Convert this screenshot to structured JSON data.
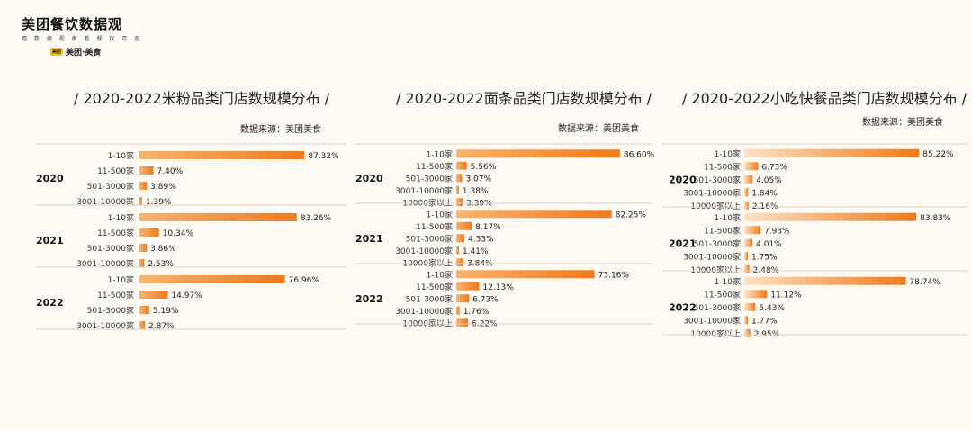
{
  "logo": {
    "title": "美团餐饮数据观",
    "subtitle": "用 数 据 视 角 看 餐 饮 百 态",
    "brand": "美团·美食",
    "badge": "美团"
  },
  "colors": {
    "bar_dark": "#f07a1c",
    "bar_light": "#f9b46e",
    "bar_pale": "#fce3c4",
    "background": "#fdf9f3"
  },
  "chart_data": [
    {
      "type": "bar",
      "orientation": "horizontal",
      "title": "/ 2020-2022米粉品类门店数规模分布 /",
      "source": "数据来源：美团美食",
      "unit": "%",
      "xlim": [
        0,
        100
      ],
      "groups": [
        {
          "year": "2020",
          "categories": [
            "1-10家",
            "11-500家",
            "501-3000家",
            "3001-10000家"
          ],
          "values": [
            87.32,
            7.4,
            3.89,
            1.39
          ],
          "labels": [
            "87.32%",
            "7.40%",
            "3.89%",
            "1.39%"
          ]
        },
        {
          "year": "2021",
          "categories": [
            "1-10家",
            "11-500家",
            "501-3000家",
            "3001-10000家"
          ],
          "values": [
            83.26,
            10.34,
            3.86,
            2.53
          ],
          "labels": [
            "83.26%",
            "10.34%",
            "3.86%",
            "2.53%"
          ]
        },
        {
          "year": "2022",
          "categories": [
            "1-10家",
            "11-500家",
            "501-3000家",
            "3001-10000家"
          ],
          "values": [
            76.96,
            14.97,
            5.19,
            2.87
          ],
          "labels": [
            "76.96%",
            "14.97%",
            "5.19%",
            "2.87%"
          ]
        }
      ]
    },
    {
      "type": "bar",
      "orientation": "horizontal",
      "title": "/ 2020-2022面条品类门店数规模分布 /",
      "source": "数据来源：美团美食",
      "unit": "%",
      "xlim": [
        0,
        100
      ],
      "groups": [
        {
          "year": "2020",
          "categories": [
            "1-10家",
            "11-500家",
            "501-3000家",
            "3001-10000家",
            "10000家以上"
          ],
          "values": [
            86.6,
            5.56,
            3.07,
            1.38,
            3.39
          ],
          "labels": [
            "86.60%",
            "5.56%",
            "3.07%",
            "1.38%",
            "3.39%"
          ]
        },
        {
          "year": "2021",
          "categories": [
            "1-10家",
            "11-500家",
            "501-3000家",
            "3001-10000家",
            "10000家以上"
          ],
          "values": [
            82.25,
            8.17,
            4.33,
            1.41,
            3.84
          ],
          "labels": [
            "82.25%",
            "8.17%",
            "4.33%",
            "1.41%",
            "3.84%"
          ]
        },
        {
          "year": "2022",
          "categories": [
            "1-10家",
            "11-500家",
            "501-3000家",
            "3001-10000家",
            "10000家以上"
          ],
          "values": [
            73.16,
            12.13,
            6.73,
            1.76,
            6.22
          ],
          "labels": [
            "73.16%",
            "12.13%",
            "6.73%",
            "1.76%",
            "6.22%"
          ]
        }
      ]
    },
    {
      "type": "bar",
      "orientation": "horizontal",
      "title": "/ 2020-2022小吃快餐品类门店数规模分布 /",
      "source": "数据来源：美团美食",
      "unit": "%",
      "xlim": [
        0,
        100
      ],
      "groups": [
        {
          "year": "2020",
          "categories": [
            "1-10家",
            "11-500家",
            "501-3000家",
            "3001-10000家",
            "10000家以上"
          ],
          "values": [
            85.22,
            6.73,
            4.05,
            1.84,
            2.16
          ],
          "labels": [
            "85.22%",
            "6.73%",
            "4.05%",
            "1.84%",
            "2.16%"
          ]
        },
        {
          "year": "2021",
          "categories": [
            "1-10家",
            "11-500家",
            "501-3000家",
            "3001-10000家",
            "10000家以上"
          ],
          "values": [
            83.83,
            7.93,
            4.01,
            1.75,
            2.48
          ],
          "labels": [
            "83.83%",
            "7.93%",
            "4.01%",
            "1.75%",
            "2.48%"
          ]
        },
        {
          "year": "2022",
          "categories": [
            "1-10家",
            "11-500家",
            "501-3000家",
            "3001-10000家",
            "10000家以上"
          ],
          "values": [
            78.74,
            11.12,
            5.43,
            1.77,
            2.95
          ],
          "labels": [
            "78.74%",
            "11.12%",
            "5.43%",
            "1.77%",
            "2.95%"
          ]
        }
      ]
    }
  ]
}
